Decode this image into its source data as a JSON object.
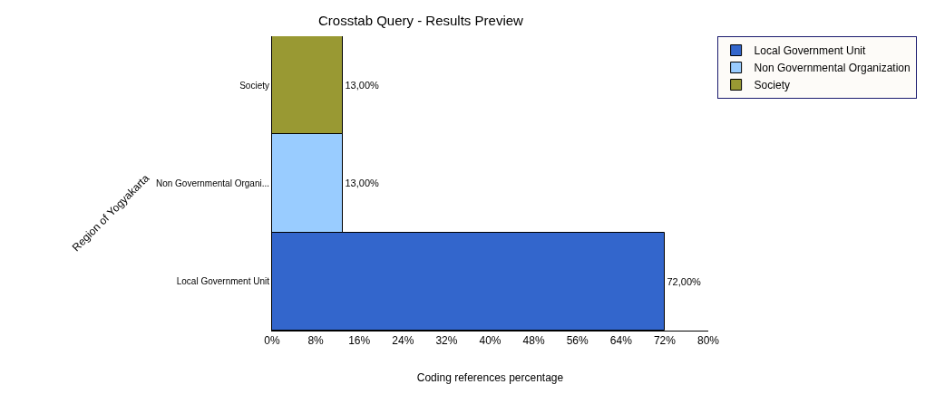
{
  "chart_data": {
    "type": "bar",
    "orientation": "horizontal",
    "title": "Crosstab Query - Results Preview",
    "xlabel": "Coding references percentage",
    "ylabel": "Region of Yogyakarta",
    "categories": [
      "Society",
      "Non Governmental Organi...",
      "Local Government Unit"
    ],
    "series": [
      {
        "name": "Local Government Unit",
        "color": "#3366cc",
        "values": [
          null,
          null,
          72
        ],
        "value_labels": [
          null,
          null,
          "72,00%"
        ]
      },
      {
        "name": "Non Governmental Organization",
        "color": "#99ccff",
        "values": [
          null,
          13,
          null
        ],
        "value_labels": [
          null,
          "13,00%",
          null
        ]
      },
      {
        "name": "Society",
        "color": "#999933",
        "values": [
          13,
          null,
          null
        ],
        "value_labels": [
          "13,00%",
          null,
          null
        ]
      }
    ],
    "xlim": [
      0,
      80
    ],
    "xticks": [
      {
        "value": 0,
        "label": "0%"
      },
      {
        "value": 8,
        "label": "8%"
      },
      {
        "value": 16,
        "label": "16%"
      },
      {
        "value": 24,
        "label": "24%"
      },
      {
        "value": 32,
        "label": "32%"
      },
      {
        "value": 40,
        "label": "40%"
      },
      {
        "value": 48,
        "label": "48%"
      },
      {
        "value": 56,
        "label": "56%"
      },
      {
        "value": 64,
        "label": "64%"
      },
      {
        "value": 72,
        "label": "72%"
      },
      {
        "value": 80,
        "label": "80%"
      }
    ],
    "legend": "right"
  }
}
